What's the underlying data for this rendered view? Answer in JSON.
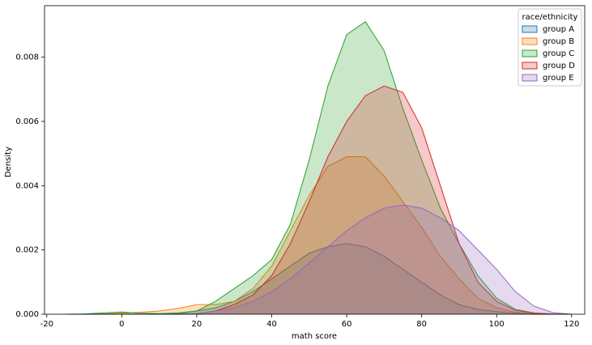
{
  "chart_data": {
    "type": "area",
    "xlabel": "math score",
    "ylabel": "Density",
    "legend_title": "race/ethnicity",
    "legend": "upper right",
    "x": [
      -15,
      -10,
      -5,
      0,
      5,
      10,
      15,
      20,
      25,
      30,
      35,
      40,
      45,
      50,
      55,
      60,
      65,
      70,
      75,
      80,
      85,
      90,
      95,
      100,
      105,
      110,
      115,
      120
    ],
    "series": [
      {
        "name": "group A",
        "color": "#1f77b4",
        "values": [
          0,
          0,
          0,
          0,
          0,
          0,
          2e-05,
          0.0001,
          0.0002,
          0.0004,
          0.0007,
          0.0011,
          0.0015,
          0.0019,
          0.0021,
          0.0022,
          0.0021,
          0.0018,
          0.0014,
          0.001,
          0.0006,
          0.0003,
          0.00015,
          8e-05,
          3e-05,
          0,
          0,
          0
        ]
      },
      {
        "name": "group B",
        "color": "#ff7f0e",
        "values": [
          0,
          0,
          1e-05,
          3e-05,
          6e-05,
          0.0001,
          0.00018,
          0.0003,
          0.0003,
          0.0004,
          0.0008,
          0.0015,
          0.0026,
          0.0037,
          0.0046,
          0.0049,
          0.0049,
          0.0043,
          0.0035,
          0.0027,
          0.0018,
          0.0011,
          0.0005,
          0.0002,
          6e-05,
          1e-05,
          0,
          0
        ]
      },
      {
        "name": "group C",
        "color": "#2ca02c",
        "values": [
          0,
          1e-05,
          4e-05,
          7e-05,
          3e-05,
          2e-05,
          4e-05,
          0.0001,
          0.0004,
          0.0008,
          0.0012,
          0.0017,
          0.0028,
          0.0048,
          0.0071,
          0.0087,
          0.0091,
          0.0082,
          0.0064,
          0.0048,
          0.0033,
          0.0022,
          0.0012,
          0.0005,
          0.00015,
          4e-05,
          1e-05,
          0
        ]
      },
      {
        "name": "group D",
        "color": "#d62728",
        "values": [
          0,
          0,
          0,
          0,
          0,
          0,
          0,
          2e-05,
          0.0001,
          0.0003,
          0.0006,
          0.0012,
          0.0022,
          0.0035,
          0.0049,
          0.006,
          0.0068,
          0.0071,
          0.0069,
          0.0058,
          0.004,
          0.0022,
          0.001,
          0.0004,
          0.00012,
          3e-05,
          0,
          0
        ]
      },
      {
        "name": "group E",
        "color": "#9467bd",
        "values": [
          0,
          0,
          0,
          0,
          0,
          0,
          0,
          2e-05,
          0.0001,
          0.0002,
          0.0004,
          0.0007,
          0.0011,
          0.0016,
          0.0021,
          0.0026,
          0.003,
          0.0033,
          0.0034,
          0.0033,
          0.003,
          0.0026,
          0.002,
          0.0014,
          0.0007,
          0.00025,
          5e-05,
          0
        ]
      }
    ],
    "xlim": [
      -20.6,
      123.5
    ],
    "xticks": [
      -20,
      0,
      20,
      40,
      60,
      80,
      100,
      120
    ],
    "ylim": [
      0,
      0.0096
    ],
    "yticks": [
      {
        "value": 0,
        "label": "0.000"
      },
      {
        "value": 0.002,
        "label": "0.002"
      },
      {
        "value": 0.004,
        "label": "0.004"
      },
      {
        "value": 0.006,
        "label": "0.006"
      },
      {
        "value": 0.008,
        "label": "0.008"
      }
    ]
  }
}
